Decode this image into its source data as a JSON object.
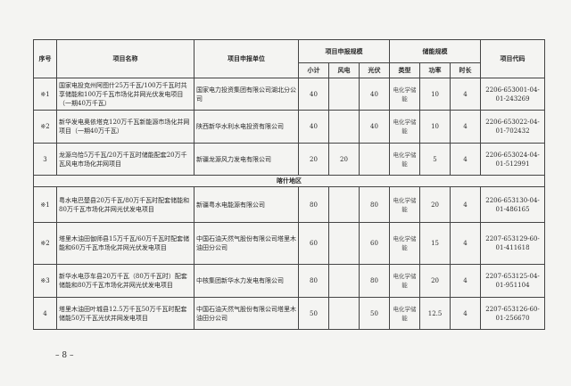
{
  "headers": {
    "seq": "序号",
    "name": "项目名称",
    "unit": "项目申报单位",
    "scale": "项目申报规模",
    "subtotal": "小计",
    "wind": "风电",
    "pv": "光伏",
    "storage": "储能规模",
    "type": "类型",
    "power": "功率",
    "duration": "时长",
    "code": "项目代码"
  },
  "rows_a": [
    {
      "seq": "※1",
      "name": "国家电投克州阿图什25万千瓦/100万千瓦时共享储能和100万千瓦市场化并网光伏发电项目（一期40万千瓦）",
      "unit": "国家电力投资集团有限公司湖北分公司",
      "subtotal": "40",
      "wind": "",
      "pv": "40",
      "type": "电化学储能",
      "power": "10",
      "duration": "4",
      "code": "2206-653001-04-01-243269"
    },
    {
      "seq": "※2",
      "name": "新华发电奥依塔克120万千瓦新能源市场化并网项目（一期40万千瓦）",
      "unit": "陕西新华水利水电投资有限公司",
      "subtotal": "40",
      "wind": "",
      "pv": "40",
      "type": "电化学储能",
      "power": "10",
      "duration": "4",
      "code": "2206-653022-04-01-702432"
    },
    {
      "seq": "3",
      "name": "龙源乌恰5万千瓦/20万千瓦时储能配套20万千瓦风电市场化并网项目",
      "unit": "新疆龙源风力发电有限公司",
      "subtotal": "20",
      "wind": "20",
      "pv": "",
      "type": "电化学储能",
      "power": "5",
      "duration": "4",
      "code": "2206-653024-04-01-512991"
    }
  ],
  "region": "喀什地区",
  "rows_b": [
    {
      "seq": "※1",
      "name": "粤水电巴楚县20万千瓦/80万千瓦时配套储能和80万千瓦市场化并网光伏发电项目",
      "unit": "新疆粤水电能源有限公司",
      "subtotal": "80",
      "wind": "",
      "pv": "80",
      "type": "电化学储能",
      "power": "20",
      "duration": "4",
      "code": "2206-653130-04-01-486165"
    },
    {
      "seq": "※2",
      "name": "塔里木油田伽师县15万千瓦/60万千瓦时配套储能和60万千瓦市场化并网光伏发电项目",
      "unit": "中国石油天然气股份有限公司塔里木油田分公司",
      "subtotal": "60",
      "wind": "",
      "pv": "60",
      "type": "电化学储能",
      "power": "15",
      "duration": "4",
      "code": "2207-653129-60-01-411618"
    },
    {
      "seq": "※3",
      "name": "新华水电莎车县20万千瓦（80万千瓦时）配套储能和80万千瓦市场化并网光伏发电项目",
      "unit": "中核集团新华水力发电有限公司",
      "subtotal": "80",
      "wind": "",
      "pv": "80",
      "type": "电化学储能",
      "power": "20",
      "duration": "4",
      "code": "2207-653125-04-01-951104"
    },
    {
      "seq": "4",
      "name": "塔里木油田叶城县12.5万千瓦50万千瓦时配套储能50万千瓦光伏并网发电项目",
      "unit": "中国石油天然气股份有限公司塔里木油田分公司",
      "subtotal": "50",
      "wind": "",
      "pv": "50",
      "type": "电化学储能",
      "power": "12.5",
      "duration": "4",
      "code": "2207-653126-60-01-256670"
    }
  ],
  "page_number": "– 8 –"
}
